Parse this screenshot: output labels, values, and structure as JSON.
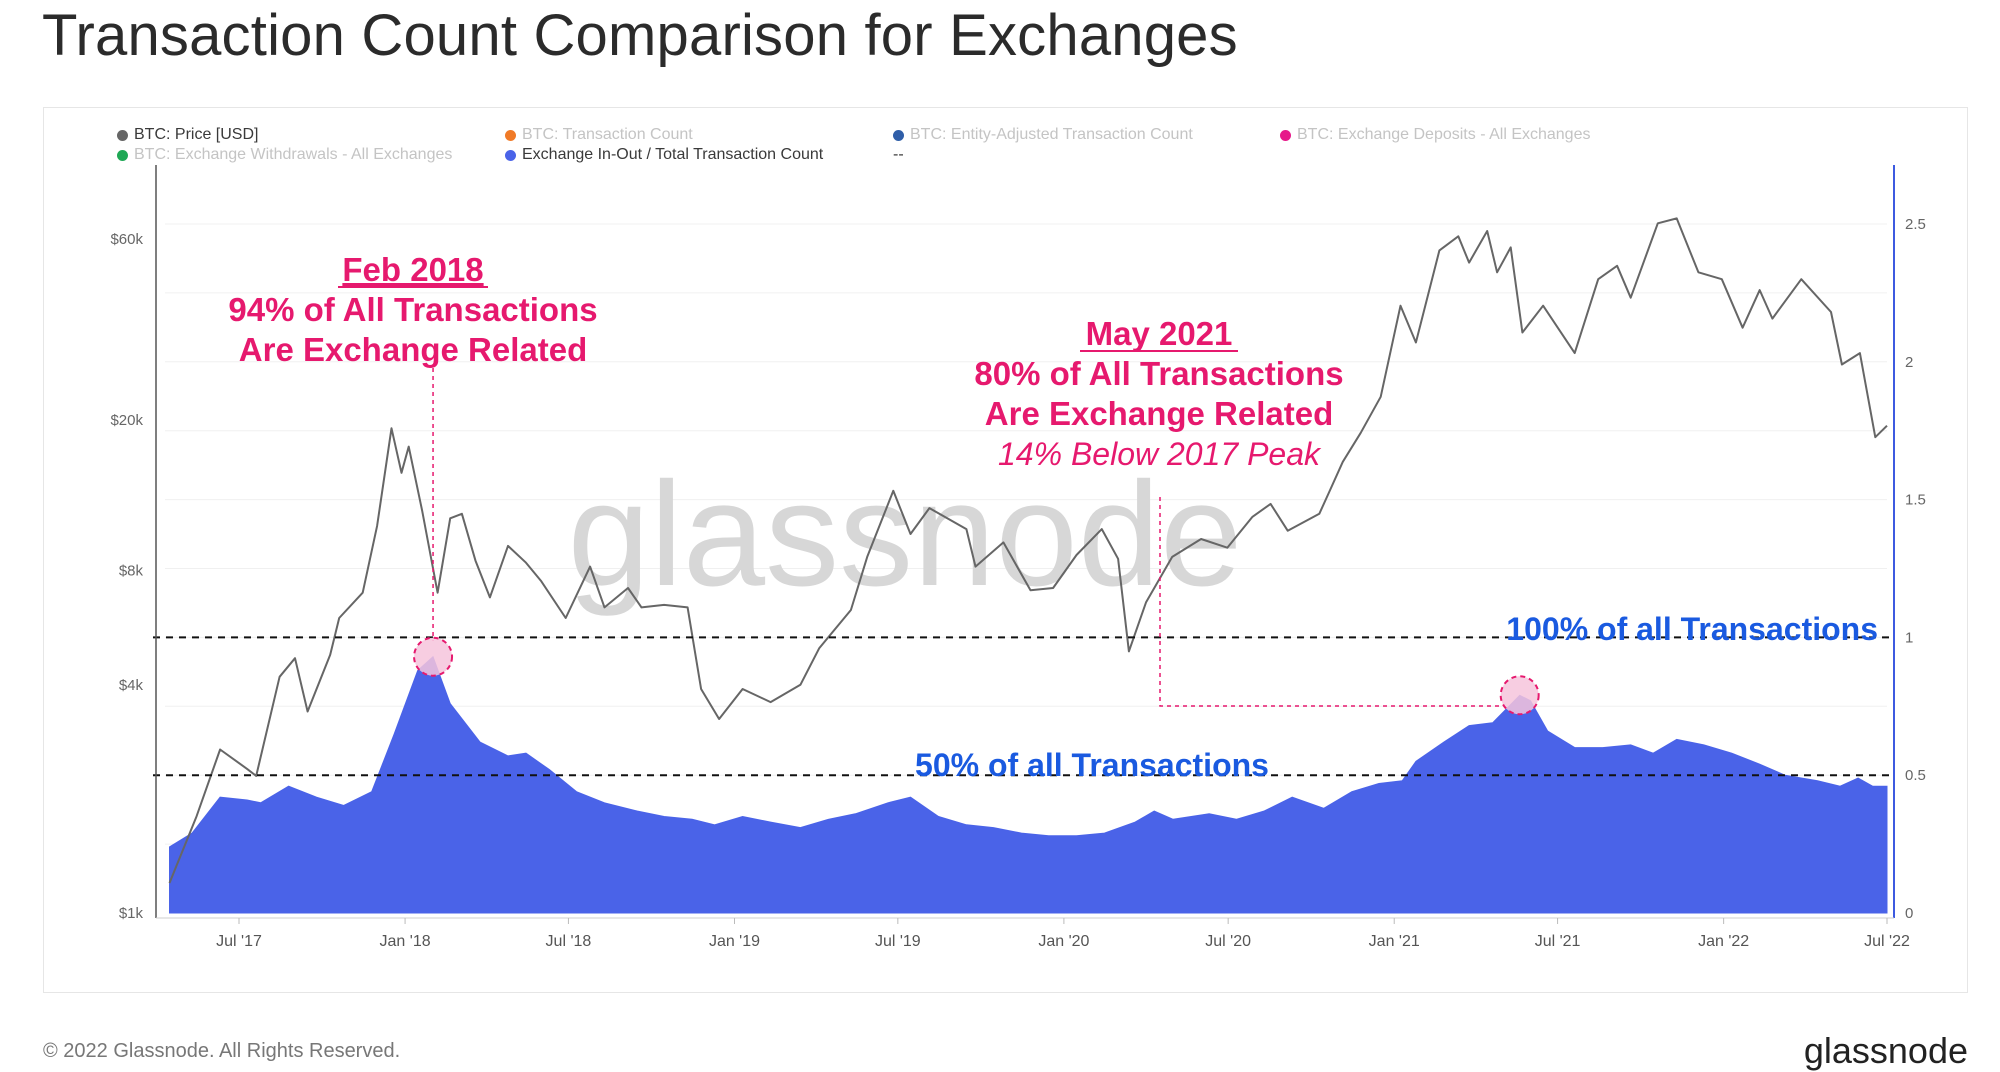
{
  "title": "Transaction Count Comparison for Exchanges",
  "legend": [
    {
      "label": "BTC: Price [USD]",
      "color": "#666666",
      "active": true
    },
    {
      "label": "BTC: Transaction Count",
      "color": "#f07a27",
      "active": false
    },
    {
      "label": "BTC: Entity-Adjusted Transaction Count",
      "color": "#2f5ea8",
      "active": false
    },
    {
      "label": "BTC: Exchange Deposits - All Exchanges",
      "color": "#e6198a",
      "active": false
    },
    {
      "label": "BTC: Exchange Withdrawals - All Exchanges",
      "color": "#1fa855",
      "active": false
    },
    {
      "label": "Exchange In-Out / Total Transaction Count",
      "color": "#4a63e8",
      "active": true
    },
    {
      "label": "--",
      "color": "",
      "active": true
    }
  ],
  "annotations": {
    "feb2018": {
      "line1": "Feb 2018",
      "line2": "94% of All Transactions",
      "line3": "Are Exchange Related"
    },
    "may2021": {
      "line1": "May 2021",
      "line2": "80% of All Transactions",
      "line3": "Are Exchange Related",
      "line4": "14% Below 2017 Peak"
    },
    "level100": "100% of all Transactions",
    "level50": "50% of all Transactions"
  },
  "watermark": "glassnode",
  "footer": {
    "copyright": "© 2022 Glassnode. All Rights Reserved.",
    "brand": "glassnode"
  },
  "colors": {
    "price": "#666666",
    "ratio": "#4a63e8",
    "annotation": "#e6196e",
    "blue_text": "#1a5ae0"
  },
  "chart_data": {
    "type": "line",
    "x_ticks": [
      "Jul '17",
      "Jan '18",
      "Jul '18",
      "Jan '19",
      "Jul '19",
      "Jan '20",
      "Jul '20",
      "Jan '21",
      "Jul '21",
      "Jan '22",
      "Jul '22"
    ],
    "y_left": {
      "scale": "log",
      "ticks": [
        "$1k",
        "$4k",
        "$8k",
        "$20k",
        "$60k"
      ],
      "tick_values": [
        1000,
        4000,
        8000,
        20000,
        60000
      ]
    },
    "y_right": {
      "scale": "linear",
      "ticks": [
        "0",
        "0.5",
        "1",
        "1.5",
        "2",
        "2.5"
      ],
      "tick_values": [
        0,
        0.5,
        1,
        1.5,
        2,
        2.5
      ],
      "range": [
        0,
        2.5
      ]
    },
    "series": [
      {
        "name": "BTC: Price [USD]",
        "axis": "left",
        "style": "line",
        "points": [
          [
            "2017-04-15",
            1200
          ],
          [
            "2017-05-15",
            1800
          ],
          [
            "2017-06-10",
            2700
          ],
          [
            "2017-07-10",
            2400
          ],
          [
            "2017-07-20",
            2300
          ],
          [
            "2017-08-15",
            4200
          ],
          [
            "2017-09-01",
            4700
          ],
          [
            "2017-09-15",
            3400
          ],
          [
            "2017-10-10",
            4800
          ],
          [
            "2017-10-20",
            6000
          ],
          [
            "2017-11-15",
            7000
          ],
          [
            "2017-12-01",
            10500
          ],
          [
            "2017-12-17",
            19000
          ],
          [
            "2017-12-28",
            14500
          ],
          [
            "2018-01-05",
            17000
          ],
          [
            "2018-01-20",
            11500
          ],
          [
            "2018-02-06",
            7000
          ],
          [
            "2018-02-20",
            11000
          ],
          [
            "2018-03-05",
            11300
          ],
          [
            "2018-03-20",
            8500
          ],
          [
            "2018-04-05",
            6800
          ],
          [
            "2018-04-25",
            9300
          ],
          [
            "2018-05-15",
            8400
          ],
          [
            "2018-06-01",
            7500
          ],
          [
            "2018-06-28",
            6000
          ],
          [
            "2018-07-25",
            8200
          ],
          [
            "2018-08-10",
            6400
          ],
          [
            "2018-09-05",
            7200
          ],
          [
            "2018-09-20",
            6400
          ],
          [
            "2018-10-15",
            6500
          ],
          [
            "2018-11-10",
            6400
          ],
          [
            "2018-11-25",
            3900
          ],
          [
            "2018-12-15",
            3250
          ],
          [
            "2019-01-10",
            3900
          ],
          [
            "2019-02-10",
            3600
          ],
          [
            "2019-03-15",
            4000
          ],
          [
            "2019-04-05",
            5000
          ],
          [
            "2019-05-10",
            6300
          ],
          [
            "2019-05-28",
            8700
          ],
          [
            "2019-06-26",
            13000
          ],
          [
            "2019-07-15",
            10000
          ],
          [
            "2019-08-05",
            11700
          ],
          [
            "2019-09-15",
            10300
          ],
          [
            "2019-09-25",
            8200
          ],
          [
            "2019-10-26",
            9500
          ],
          [
            "2019-11-25",
            7100
          ],
          [
            "2019-12-20",
            7200
          ],
          [
            "2020-01-15",
            8800
          ],
          [
            "2020-02-12",
            10300
          ],
          [
            "2020-03-01",
            8600
          ],
          [
            "2020-03-13",
            4900
          ],
          [
            "2020-04-01",
            6600
          ],
          [
            "2020-04-30",
            8700
          ],
          [
            "2020-06-01",
            9700
          ],
          [
            "2020-06-30",
            9200
          ],
          [
            "2020-07-28",
            11100
          ],
          [
            "2020-08-17",
            12000
          ],
          [
            "2020-09-05",
            10200
          ],
          [
            "2020-10-10",
            11300
          ],
          [
            "2020-10-21",
            12900
          ],
          [
            "2020-11-05",
            15500
          ],
          [
            "2020-11-25",
            18500
          ],
          [
            "2020-12-17",
            23000
          ],
          [
            "2021-01-08",
            40000
          ],
          [
            "2021-01-25",
            32000
          ],
          [
            "2021-02-20",
            56000
          ],
          [
            "2021-03-13",
            61000
          ],
          [
            "2021-03-25",
            52000
          ],
          [
            "2021-04-14",
            63000
          ],
          [
            "2021-04-25",
            49000
          ],
          [
            "2021-05-10",
            57000
          ],
          [
            "2021-05-23",
            34000
          ],
          [
            "2021-06-15",
            40000
          ],
          [
            "2021-07-20",
            30000
          ],
          [
            "2021-08-15",
            47000
          ],
          [
            "2021-09-05",
            51000
          ],
          [
            "2021-09-20",
            42000
          ],
          [
            "2021-10-20",
            66000
          ],
          [
            "2021-11-10",
            68000
          ],
          [
            "2021-12-04",
            49000
          ],
          [
            "2021-12-30",
            47000
          ],
          [
            "2022-01-22",
            35000
          ],
          [
            "2022-02-10",
            44000
          ],
          [
            "2022-02-24",
            37000
          ],
          [
            "2022-03-28",
            47000
          ],
          [
            "2022-04-30",
            38500
          ],
          [
            "2022-05-12",
            28000
          ],
          [
            "2022-06-01",
            30000
          ],
          [
            "2022-06-18",
            18000
          ],
          [
            "2022-07-01",
            19300
          ]
        ]
      },
      {
        "name": "Exchange In-Out / Total Transaction Count",
        "axis": "right",
        "style": "area",
        "points": [
          [
            "2017-04-15",
            0.24
          ],
          [
            "2017-05-10",
            0.29
          ],
          [
            "2017-06-10",
            0.42
          ],
          [
            "2017-07-10",
            0.41
          ],
          [
            "2017-07-25",
            0.4
          ],
          [
            "2017-08-25",
            0.46
          ],
          [
            "2017-09-25",
            0.42
          ],
          [
            "2017-10-25",
            0.39
          ],
          [
            "2017-11-25",
            0.44
          ],
          [
            "2017-12-20",
            0.65
          ],
          [
            "2018-01-15",
            0.88
          ],
          [
            "2018-02-01",
            0.93
          ],
          [
            "2018-02-20",
            0.76
          ],
          [
            "2018-03-25",
            0.62
          ],
          [
            "2018-04-25",
            0.57
          ],
          [
            "2018-05-15",
            0.58
          ],
          [
            "2018-06-10",
            0.52
          ],
          [
            "2018-07-10",
            0.44
          ],
          [
            "2018-08-10",
            0.4
          ],
          [
            "2018-09-15",
            0.37
          ],
          [
            "2018-10-15",
            0.35
          ],
          [
            "2018-11-15",
            0.34
          ],
          [
            "2018-12-10",
            0.32
          ],
          [
            "2019-01-10",
            0.35
          ],
          [
            "2019-02-10",
            0.33
          ],
          [
            "2019-03-15",
            0.31
          ],
          [
            "2019-04-15",
            0.34
          ],
          [
            "2019-05-15",
            0.36
          ],
          [
            "2019-06-20",
            0.4
          ],
          [
            "2019-07-15",
            0.42
          ],
          [
            "2019-08-15",
            0.35
          ],
          [
            "2019-09-15",
            0.32
          ],
          [
            "2019-10-15",
            0.31
          ],
          [
            "2019-11-15",
            0.29
          ],
          [
            "2019-12-15",
            0.28
          ],
          [
            "2020-01-15",
            0.28
          ],
          [
            "2020-02-15",
            0.29
          ],
          [
            "2020-03-20",
            0.33
          ],
          [
            "2020-04-10",
            0.37
          ],
          [
            "2020-05-01",
            0.34
          ],
          [
            "2020-06-10",
            0.36
          ],
          [
            "2020-07-10",
            0.34
          ],
          [
            "2020-08-10",
            0.37
          ],
          [
            "2020-09-10",
            0.42
          ],
          [
            "2020-10-15",
            0.38
          ],
          [
            "2020-11-15",
            0.44
          ],
          [
            "2020-12-15",
            0.47
          ],
          [
            "2021-01-10",
            0.48
          ],
          [
            "2021-01-25",
            0.55
          ],
          [
            "2021-02-25",
            0.62
          ],
          [
            "2021-03-25",
            0.68
          ],
          [
            "2021-04-20",
            0.69
          ],
          [
            "2021-05-20",
            0.79
          ],
          [
            "2021-06-01",
            0.77
          ],
          [
            "2021-06-20",
            0.66
          ],
          [
            "2021-07-20",
            0.6
          ],
          [
            "2021-08-20",
            0.6
          ],
          [
            "2021-09-20",
            0.61
          ],
          [
            "2021-10-15",
            0.58
          ],
          [
            "2021-11-10",
            0.63
          ],
          [
            "2021-12-10",
            0.61
          ],
          [
            "2022-01-10",
            0.58
          ],
          [
            "2022-02-10",
            0.54
          ],
          [
            "2022-03-10",
            0.5
          ],
          [
            "2022-04-15",
            0.48
          ],
          [
            "2022-05-10",
            0.46
          ],
          [
            "2022-05-30",
            0.49
          ],
          [
            "2022-06-15",
            0.46
          ],
          [
            "2022-07-01",
            0.46
          ]
        ]
      }
    ],
    "reference_lines": [
      {
        "axis": "right",
        "value": 1.0,
        "label": "100% of all Transactions"
      },
      {
        "axis": "right",
        "value": 0.5,
        "label": "50% of all Transactions"
      }
    ],
    "highlights": [
      {
        "date": "2018-02-01",
        "value": 0.93,
        "label": "Feb 2018"
      },
      {
        "date": "2021-05-20",
        "value": 0.79,
        "label": "May 2021"
      }
    ],
    "grid": true,
    "legend_position": "top"
  }
}
